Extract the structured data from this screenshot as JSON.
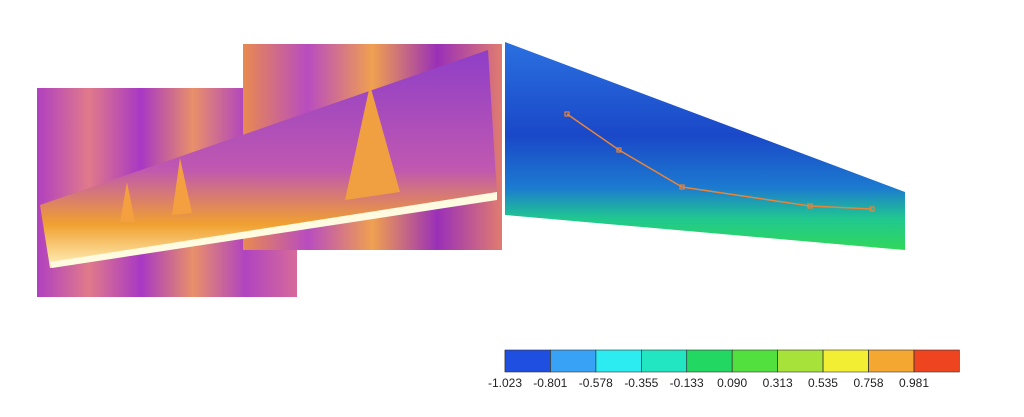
{
  "colorbar": {
    "ticks": [
      -1.023,
      -0.801,
      -0.578,
      -0.355,
      -0.133,
      {
        "value": 0.09,
        "label": "0.090"
      },
      0.313,
      0.535,
      0.758,
      0.981
    ],
    "colors": [
      "#1f4fe0",
      "#37a2f6",
      "#2cecf2",
      "#22e6c2",
      "#22d862",
      "#52e03e",
      "#a6e23a",
      "#f2ee34",
      "#f4a832",
      "#ee4420"
    ]
  }
}
